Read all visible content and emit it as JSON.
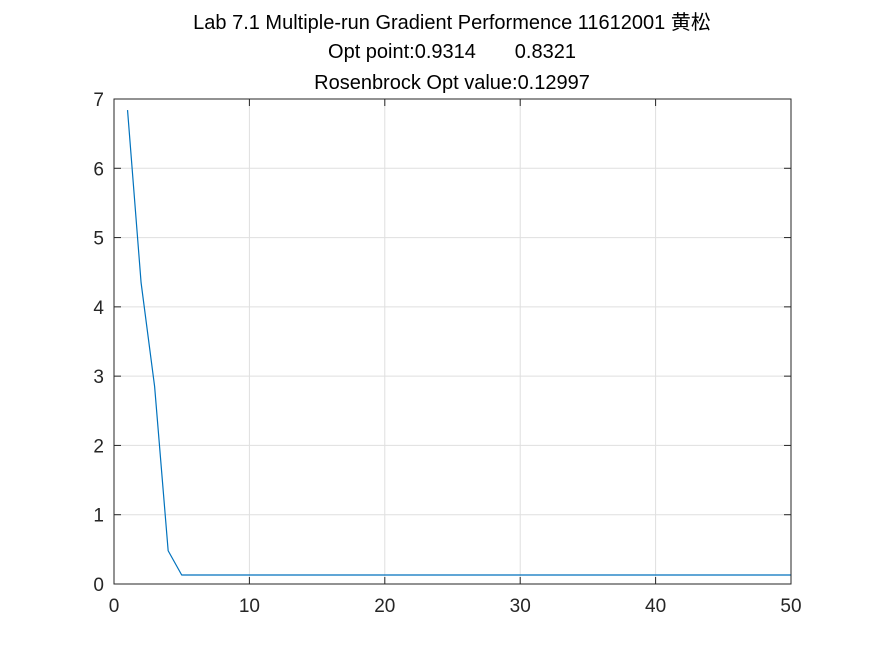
{
  "chart_data": {
    "type": "line",
    "title": [
      "Lab 7.1 Multiple-run Gradient Performence 11612001 黄松",
      "Opt point:0.9314       0.8321",
      "Rosenbrock Opt value:0.12997"
    ],
    "xlabel": "",
    "ylabel": "",
    "xlim": [
      0,
      50
    ],
    "ylim": [
      0,
      7
    ],
    "xticks": [
      0,
      10,
      20,
      30,
      40,
      50
    ],
    "yticks": [
      0,
      1,
      2,
      3,
      4,
      5,
      6,
      7
    ],
    "grid": true,
    "colors": {
      "line": "#0072BD",
      "grid": "#dfdfdf",
      "axis": "#262626"
    },
    "series": [
      {
        "x": [
          1,
          2,
          3,
          4,
          5,
          6,
          7,
          8,
          9,
          10,
          11,
          12,
          13,
          14,
          15,
          16,
          17,
          18,
          19,
          20,
          21,
          22,
          23,
          24,
          25,
          26,
          27,
          28,
          29,
          30,
          31,
          32,
          33,
          34,
          35,
          36,
          37,
          38,
          39,
          40,
          41,
          42,
          43,
          44,
          45,
          46,
          47,
          48,
          49,
          50
        ],
        "y": [
          6.84,
          4.35,
          2.85,
          0.48,
          0.13,
          0.13,
          0.13,
          0.13,
          0.13,
          0.13,
          0.13,
          0.13,
          0.13,
          0.13,
          0.13,
          0.13,
          0.13,
          0.13,
          0.13,
          0.13,
          0.13,
          0.13,
          0.13,
          0.13,
          0.13,
          0.13,
          0.13,
          0.13,
          0.13,
          0.13,
          0.13,
          0.13,
          0.13,
          0.13,
          0.13,
          0.13,
          0.13,
          0.13,
          0.13,
          0.13,
          0.13,
          0.13,
          0.13,
          0.13,
          0.13,
          0.13,
          0.13,
          0.13,
          0.13,
          0.13
        ]
      }
    ]
  }
}
